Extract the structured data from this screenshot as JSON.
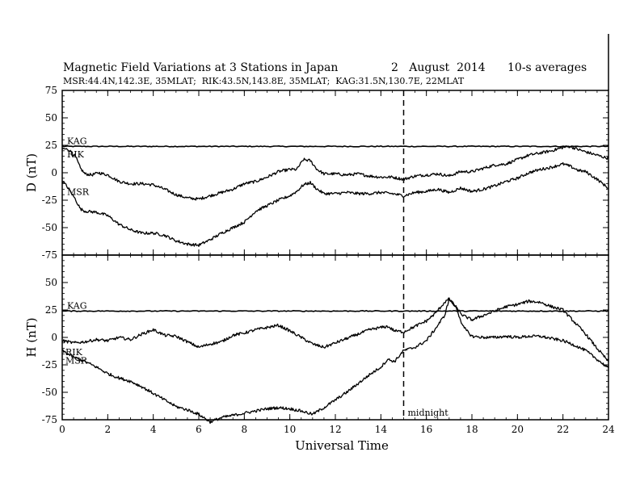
{
  "header": {
    "title": "Magnetic Field Variations at 3 Stations in Japan",
    "date": "2   August  2014",
    "averaging": "10-s averages",
    "stations": "MSR:44.4N,142.3E, 35MLAT;  RIK:43.5N,143.8E, 35MLAT;  KAG:31.5N,130.7E, 22MLAT"
  },
  "chart_data": [
    {
      "type": "line",
      "ylabel": "D (nT)",
      "xlabel": "",
      "xlim": [
        0,
        24
      ],
      "ylim": [
        -75,
        75
      ],
      "yticks": [
        75,
        50,
        25,
        0,
        -25,
        -50,
        -75
      ],
      "xticks": [
        0,
        2,
        4,
        6,
        8,
        10,
        12,
        14,
        16,
        18,
        20,
        22,
        24
      ],
      "series": [
        {
          "name": "KAG",
          "x": [
            0,
            24
          ],
          "y": [
            24,
            24
          ]
        },
        {
          "name": "RIK",
          "x": [
            0,
            0.3,
            0.6,
            0.8,
            1.0,
            1.3,
            1.6,
            2.0,
            2.5,
            3.0,
            3.5,
            4.0,
            4.5,
            5.0,
            5.5,
            6.0,
            6.5,
            7.0,
            7.5,
            8.0,
            8.5,
            9.0,
            9.5,
            10.0,
            10.3,
            10.6,
            10.9,
            11.2,
            11.5,
            12.0,
            12.5,
            13.0,
            13.5,
            14.0,
            14.5,
            15.0,
            15.5,
            16.0,
            16.5,
            17.0,
            17.5,
            18.0,
            18.5,
            19.0,
            19.5,
            20.0,
            20.5,
            21.0,
            21.5,
            22.0,
            22.3,
            22.7,
            23.0,
            23.5,
            24.0
          ],
          "y": [
            22,
            21,
            14,
            4,
            -1,
            -2,
            0,
            -2,
            -8,
            -10,
            -10,
            -11,
            -15,
            -20,
            -23,
            -24,
            -21,
            -18,
            -15,
            -10,
            -8,
            -4,
            1,
            3,
            3,
            12,
            11,
            3,
            -1,
            -1,
            -2,
            -1,
            -3,
            -4,
            -4,
            -6,
            -3,
            -2,
            -1,
            -3,
            1,
            1,
            4,
            7,
            8,
            12,
            16,
            18,
            20,
            23,
            24,
            21,
            19,
            16,
            13
          ]
        },
        {
          "name": "MSR",
          "x": [
            0,
            0.3,
            0.6,
            0.8,
            1.0,
            1.5,
            2.0,
            2.5,
            3.0,
            3.5,
            4.0,
            4.5,
            5.0,
            5.5,
            6.0,
            6.5,
            7.0,
            7.5,
            8.0,
            8.5,
            9.0,
            9.5,
            10.0,
            10.3,
            10.6,
            10.9,
            11.2,
            11.5,
            12.0,
            12.5,
            13.0,
            13.5,
            14.0,
            14.5,
            15.0,
            15.5,
            16.0,
            16.5,
            17.0,
            17.5,
            18.0,
            18.5,
            19.0,
            19.5,
            20.0,
            20.5,
            21.0,
            21.5,
            22.0,
            22.3,
            22.7,
            23.0,
            23.5,
            24.0
          ],
          "y": [
            -7,
            -15,
            -25,
            -33,
            -35,
            -36,
            -39,
            -47,
            -52,
            -55,
            -55,
            -57,
            -62,
            -65,
            -66,
            -61,
            -55,
            -50,
            -45,
            -35,
            -30,
            -25,
            -21,
            -17,
            -11,
            -9,
            -15,
            -19,
            -19,
            -18,
            -19,
            -19,
            -18,
            -19,
            -21,
            -18,
            -17,
            -15,
            -18,
            -14,
            -17,
            -15,
            -12,
            -8,
            -5,
            0,
            3,
            5,
            8,
            6,
            2,
            1,
            -6,
            -14
          ]
        }
      ]
    },
    {
      "type": "line",
      "ylabel": "H (nT)",
      "xlabel": "Universal Time",
      "xlim": [
        0,
        24
      ],
      "ylim": [
        -75,
        75
      ],
      "yticks": [
        75,
        50,
        25,
        0,
        -25,
        -50,
        -75
      ],
      "xticks": [
        0,
        2,
        4,
        6,
        8,
        10,
        12,
        14,
        16,
        18,
        20,
        22,
        24
      ],
      "annotation": {
        "text": "midnight",
        "x": 15
      },
      "series": [
        {
          "name": "KAG",
          "x": [
            0,
            24
          ],
          "y": [
            24,
            24
          ]
        },
        {
          "name": "RIK",
          "x": [
            0,
            0.5,
            1.0,
            1.5,
            2.0,
            2.5,
            3.0,
            3.5,
            4.0,
            4.5,
            5.0,
            5.5,
            6.0,
            6.5,
            7.0,
            7.5,
            8.0,
            8.5,
            9.0,
            9.5,
            10.0,
            10.5,
            11.0,
            11.5,
            12.0,
            12.5,
            13.0,
            13.5,
            14.0,
            14.3,
            14.6,
            15.0,
            15.5,
            16.0,
            16.4,
            16.8,
            17.0,
            17.3,
            17.6,
            18.0,
            18.5,
            19.0,
            19.5,
            20.0,
            20.5,
            21.0,
            21.5,
            22.0,
            22.5,
            23.0,
            23.5,
            24.0
          ],
          "y": [
            -3,
            -5,
            -4,
            -2,
            -3,
            0,
            -2,
            3,
            7,
            2,
            1,
            -4,
            -9,
            -6,
            -4,
            2,
            4,
            7,
            9,
            11,
            6,
            0,
            -6,
            -9,
            -5,
            -1,
            3,
            7,
            9,
            10,
            6,
            5,
            10,
            15,
            22,
            32,
            35,
            27,
            20,
            16,
            20,
            24,
            28,
            30,
            33,
            32,
            28,
            25,
            14,
            3,
            -10,
            -22
          ]
        },
        {
          "name": "MSR",
          "x": [
            0,
            0.5,
            1.0,
            1.5,
            2.0,
            2.5,
            3.0,
            3.5,
            4.0,
            4.5,
            5.0,
            5.5,
            6.0,
            6.5,
            7.0,
            7.5,
            8.0,
            8.5,
            9.0,
            9.5,
            10.0,
            10.5,
            11.0,
            11.5,
            12.0,
            12.5,
            13.0,
            13.5,
            14.0,
            14.3,
            14.6,
            15.0,
            15.5,
            16.0,
            16.4,
            16.8,
            17.0,
            17.3,
            17.6,
            18.0,
            18.5,
            19.0,
            19.5,
            20.0,
            20.5,
            21.0,
            21.5,
            22.0,
            22.5,
            23.0,
            23.5,
            24.0
          ],
          "y": [
            -12,
            -18,
            -22,
            -27,
            -33,
            -37,
            -40,
            -45,
            -51,
            -57,
            -63,
            -66,
            -70,
            -77,
            -73,
            -71,
            -69,
            -67,
            -65,
            -64,
            -65,
            -67,
            -70,
            -64,
            -57,
            -50,
            -42,
            -34,
            -27,
            -20,
            -22,
            -12,
            -9,
            -3,
            8,
            20,
            35,
            28,
            10,
            1,
            0,
            0,
            1,
            0,
            1,
            1,
            -1,
            -3,
            -7,
            -12,
            -20,
            -28
          ]
        }
      ]
    }
  ]
}
